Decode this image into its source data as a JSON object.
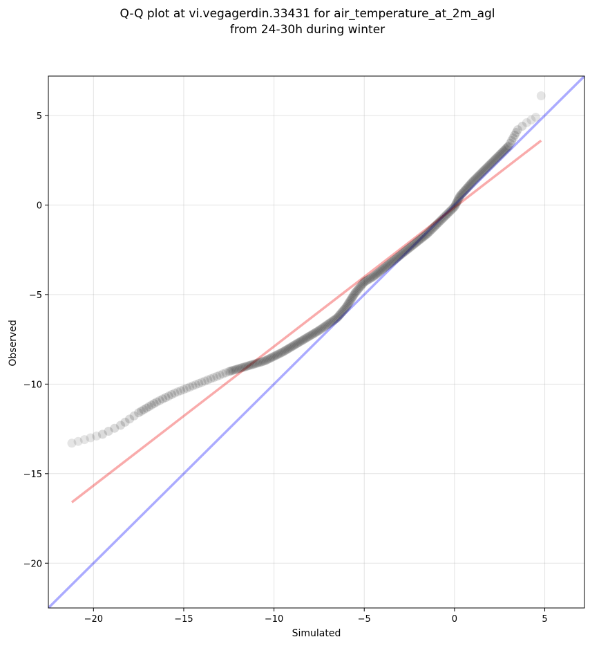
{
  "chart_data": {
    "type": "scatter",
    "title_line1": "Q-Q plot at vi.vegagerdin.33431 for air_temperature_at_2m_agl",
    "title_line2": "from 24-30h during winter",
    "xlabel": "Simulated",
    "ylabel": "Observed",
    "xlim": [
      -22.5,
      7.2
    ],
    "ylim": [
      -22.5,
      7.2
    ],
    "xticks": [
      -20,
      -15,
      -10,
      -5,
      0,
      5
    ],
    "yticks": [
      -20,
      -15,
      -10,
      -5,
      0,
      5
    ],
    "xtick_labels": [
      "−20",
      "−15",
      "−10",
      "−5",
      "0",
      "5"
    ],
    "ytick_labels": [
      "−20",
      "−15",
      "−10",
      "−5",
      "0",
      "5"
    ],
    "grid": true,
    "colors": {
      "points": "#000000",
      "identity_line": "#0000ff",
      "fit_line": "#ee0000",
      "grid": "#b0b0b0"
    },
    "identity_line": {
      "x": [
        -22.5,
        7.2
      ],
      "y": [
        -22.5,
        7.2
      ]
    },
    "fit_line": {
      "x": [
        -21.2,
        4.8
      ],
      "y": [
        -16.6,
        3.6
      ]
    },
    "quantile_curve": {
      "x": [
        -21.2,
        -20.5,
        -19.5,
        -18.5,
        -17.5,
        -16.5,
        -15.5,
        -14.5,
        -13.5,
        -12.5,
        -11.5,
        -10.5,
        -9.5,
        -8.5,
        -7.5,
        -6.5,
        -6.0,
        -5.5,
        -5.0,
        -4.5,
        -4.0,
        -3.5,
        -3.0,
        -2.5,
        -2.0,
        -1.5,
        -1.0,
        -0.5,
        0.0,
        0.3,
        1.0,
        2.0,
        3.0,
        3.5,
        4.0,
        4.5
      ],
      "y": [
        -13.3,
        -13.1,
        -12.8,
        -12.3,
        -11.6,
        -11.0,
        -10.5,
        -10.1,
        -9.7,
        -9.3,
        -9.0,
        -8.7,
        -8.2,
        -7.6,
        -7.0,
        -6.3,
        -5.7,
        -4.9,
        -4.3,
        -4.0,
        -3.6,
        -3.2,
        -2.8,
        -2.4,
        -2.0,
        -1.6,
        -1.1,
        -0.6,
        -0.1,
        0.5,
        1.3,
        2.3,
        3.3,
        4.2,
        4.6,
        4.9
      ]
    },
    "outlier_point": {
      "x": 4.8,
      "y": 6.1
    }
  }
}
